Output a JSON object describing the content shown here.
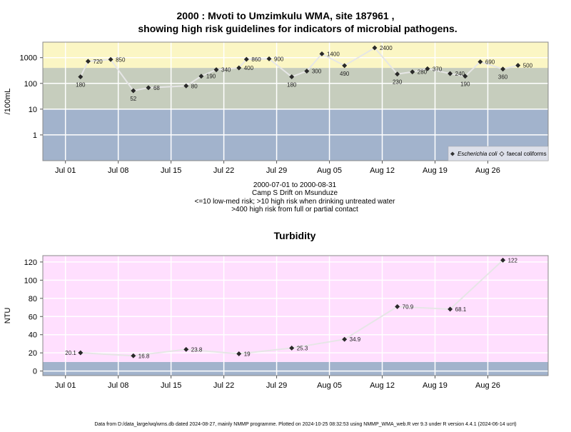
{
  "chart_data": [
    {
      "type": "scatter",
      "title_line1": "2000 : Mvoti to Umzimkulu WMA, site 187961 ,",
      "title_line2": "showing high risk guidelines for indicators of microbial pathogens.",
      "ylabel": "/100mL",
      "yscale": "log",
      "ylim": [
        0.1,
        4000
      ],
      "yticks": [
        1,
        10,
        100,
        1000
      ],
      "ytick_labels": [
        "1",
        "10",
        "100",
        "1000"
      ],
      "xlim": [
        "2000-06-28",
        "2000-09-03"
      ],
      "xticks": [
        "2000-07-01",
        "2000-07-08",
        "2000-07-15",
        "2000-07-22",
        "2000-07-29",
        "2000-08-05",
        "2000-08-12",
        "2000-08-19",
        "2000-08-26"
      ],
      "xtick_labels": [
        "Jul 01",
        "Jul 08",
        "Jul 15",
        "Jul 22",
        "Jul 29",
        "Aug 05",
        "Aug 12",
        "Aug 19",
        "Aug 26"
      ],
      "grid": true,
      "bands": [
        {
          "from": 0.1,
          "to": 10,
          "color": "#a2b3cc"
        },
        {
          "from": 10,
          "to": 400,
          "color": "#c6cdbd"
        },
        {
          "from": 400,
          "to": 4000,
          "color": "#fbf6c4"
        }
      ],
      "legend": {
        "position": "bottom-right",
        "entries": [
          {
            "label": "Escherichia coli",
            "marker": "filled-diamond"
          },
          {
            "label": "faecal coliforms",
            "marker": "open-diamond"
          }
        ]
      },
      "series": [
        {
          "name": "Escherichia coli",
          "points": [
            {
              "x": "2000-07-03",
              "y": 180,
              "label": "180"
            },
            {
              "x": "2000-07-04",
              "y": 720,
              "label": "720"
            },
            {
              "x": "2000-07-07",
              "y": 850,
              "label": "850"
            },
            {
              "x": "2000-07-10",
              "y": 52,
              "label": "52"
            },
            {
              "x": "2000-07-12",
              "y": 68,
              "label": "68"
            },
            {
              "x": "2000-07-17",
              "y": 80,
              "label": "80"
            },
            {
              "x": "2000-07-19",
              "y": 190,
              "label": "190"
            },
            {
              "x": "2000-07-21",
              "y": 340,
              "label": "340"
            },
            {
              "x": "2000-07-24",
              "y": 400,
              "label": "400"
            },
            {
              "x": "2000-07-25",
              "y": 860,
              "label": "860"
            },
            {
              "x": "2000-07-28",
              "y": 900,
              "label": "900"
            },
            {
              "x": "2000-07-31",
              "y": 180,
              "label": "180"
            },
            {
              "x": "2000-08-02",
              "y": 300,
              "label": "300"
            },
            {
              "x": "2000-08-04",
              "y": 1400,
              "label": "1400"
            },
            {
              "x": "2000-08-07",
              "y": 490,
              "label": "490"
            },
            {
              "x": "2000-08-11",
              "y": 2400,
              "label": "2400"
            },
            {
              "x": "2000-08-14",
              "y": 230,
              "label": "230"
            },
            {
              "x": "2000-08-16",
              "y": 280,
              "label": "280"
            },
            {
              "x": "2000-08-18",
              "y": 370,
              "label": "370"
            },
            {
              "x": "2000-08-21",
              "y": 240,
              "label": "240"
            },
            {
              "x": "2000-08-23",
              "y": 190,
              "label": "190"
            },
            {
              "x": "2000-08-25",
              "y": 690,
              "label": "690"
            },
            {
              "x": "2000-08-28",
              "y": 360,
              "label": "360"
            },
            {
              "x": "2000-08-30",
              "y": 500,
              "label": "500"
            }
          ]
        }
      ]
    },
    {
      "type": "line",
      "title": "Turbidity",
      "ylabel": "NTU",
      "ylim": [
        -5,
        127
      ],
      "yticks": [
        0,
        20,
        40,
        60,
        80,
        100,
        120
      ],
      "ytick_labels": [
        "0",
        "20",
        "40",
        "60",
        "80",
        "100",
        "120"
      ],
      "xlim": [
        "2000-06-28",
        "2000-09-03"
      ],
      "xticks": [
        "2000-07-01",
        "2000-07-08",
        "2000-07-15",
        "2000-07-22",
        "2000-07-29",
        "2000-08-05",
        "2000-08-12",
        "2000-08-19",
        "2000-08-26"
      ],
      "xtick_labels": [
        "Jul 01",
        "Jul 08",
        "Jul 15",
        "Jul 22",
        "Jul 29",
        "Aug 05",
        "Aug 12",
        "Aug 19",
        "Aug 26"
      ],
      "grid": true,
      "bands": [
        {
          "from": -5,
          "to": 10,
          "color": "#a2b3cc"
        },
        {
          "from": 10,
          "to": 127,
          "color": "#ffdffe"
        }
      ],
      "series": [
        {
          "name": "",
          "points": [
            {
              "x": "2000-07-03",
              "y": 20.1,
              "label": "20.1"
            },
            {
              "x": "2000-07-10",
              "y": 16.8,
              "label": "16.8"
            },
            {
              "x": "2000-07-17",
              "y": 23.8,
              "label": "23.8"
            },
            {
              "x": "2000-07-24",
              "y": 19,
              "label": "19"
            },
            {
              "x": "2000-07-31",
              "y": 25.3,
              "label": "25.3"
            },
            {
              "x": "2000-08-07",
              "y": 34.9,
              "label": "34.9"
            },
            {
              "x": "2000-08-14",
              "y": 70.9,
              "label": "70.9"
            },
            {
              "x": "2000-08-21",
              "y": 68.1,
              "label": "68.1"
            },
            {
              "x": "2000-08-28",
              "y": 122,
              "label": "122"
            }
          ]
        }
      ]
    }
  ],
  "caption": {
    "line1": "2000-07-01 to 2000-08-31",
    "line2": "Camp S Drift on Msunduze",
    "line3": "<=10 low-med risk; >10 high risk when drinking untreated water",
    "line4": ">400 high risk from full or partial contact"
  },
  "footer": "Data from D:/data_large/wq/wms.db dated 2024-08-27, mainly NMMP programme. Plotted on 2024-10-25 08:32:53 using NMMP_WMA_web.R ver 9.3 under R version 4.4.1 (2024-06-14 ucrt)"
}
